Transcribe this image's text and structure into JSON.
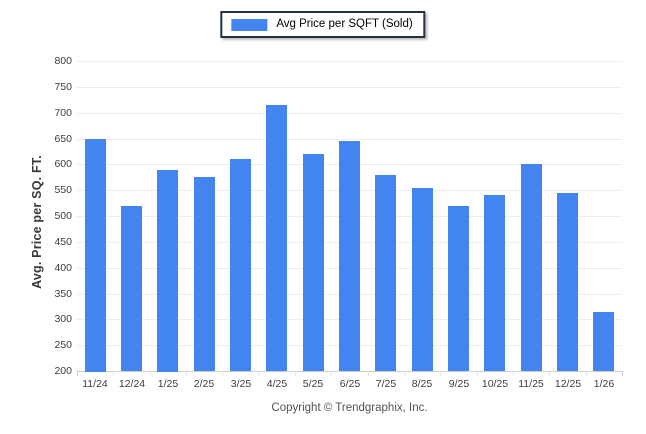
{
  "legend": {
    "label": "Avg Price per SQFT (Sold)",
    "swatch_color": "#4285f0"
  },
  "footer": {
    "copyright": "Copyright © Trendgraphix, Inc."
  },
  "colors": {
    "bar": "#4285f0",
    "legend_border": "#233140",
    "gridline": "#ededed",
    "axis_line": "#cfcfcf",
    "text": "#3d3d3d",
    "copyright_text": "#545454"
  },
  "chart_data": {
    "type": "bar",
    "title": "Avg Price per SQFT (Sold)",
    "xlabel": "",
    "ylabel": "Avg. Price per SQ. FT.",
    "categories": [
      "11/24",
      "12/24",
      "1/25",
      "2/25",
      "3/25",
      "4/25",
      "5/25",
      "6/25",
      "7/25",
      "8/25",
      "9/25",
      "10/25",
      "11/25",
      "12/25",
      "1/26"
    ],
    "values": [
      650,
      520,
      590,
      575,
      610,
      715,
      620,
      645,
      580,
      555,
      520,
      540,
      600,
      545,
      315
    ],
    "ylim": [
      200,
      800
    ],
    "y_tick_step": 50,
    "y_ticks": [
      800,
      750,
      700,
      650,
      600,
      550,
      500,
      450,
      400,
      350,
      300,
      250,
      200
    ],
    "grid": "horizontal",
    "legend_position": "top-center",
    "bar_color": "#4285f0",
    "baseline_value": 200
  }
}
